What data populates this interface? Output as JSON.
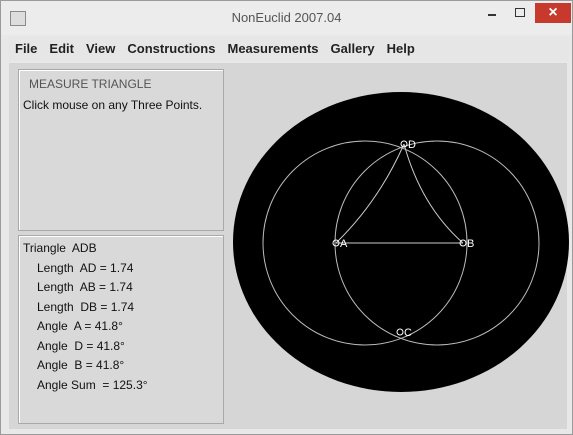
{
  "window": {
    "title": "NonEuclid 2007.04"
  },
  "menu": [
    "File",
    "Edit",
    "View",
    "Constructions",
    "Measurements",
    "Gallery",
    "Help"
  ],
  "tool_panel": {
    "title": "MEASURE TRIANGLE",
    "instruction": "Click mouse on any Three Points."
  },
  "measure_panel": {
    "lines": [
      "Triangle  ADB",
      "Length  AD = 1.74",
      "Length  AB = 1.74",
      "Length  DB = 1.74",
      "Angle  A = 41.8°",
      "Angle  D = 41.8°",
      "Angle  B = 41.8°",
      "Angle Sum  = 125.3°"
    ]
  },
  "points": [
    "A",
    "B",
    "C",
    "D"
  ]
}
